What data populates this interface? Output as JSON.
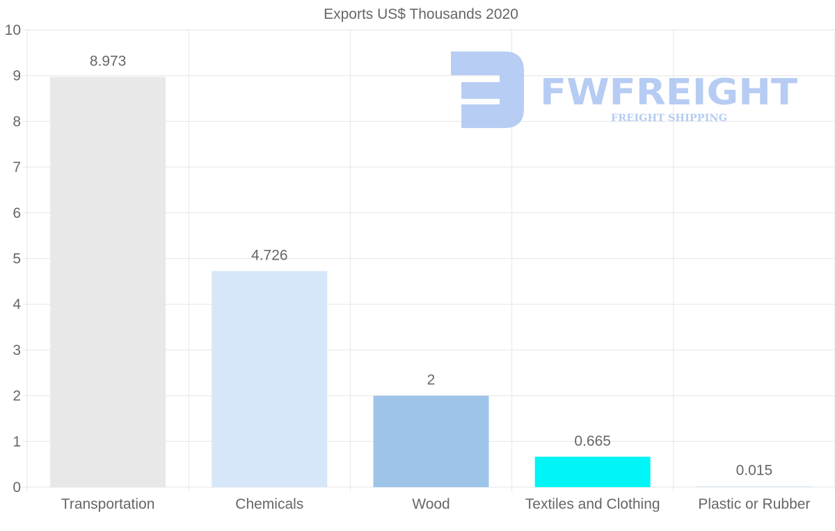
{
  "chart_data": {
    "type": "bar",
    "title": "Exports US$ Thousands 2020",
    "categories": [
      "Transportation",
      "Chemicals",
      "Wood",
      "Textiles and Clothing",
      "Plastic or Rubber"
    ],
    "values": [
      8.973,
      4.726,
      2,
      0.665,
      0.015
    ],
    "value_labels": [
      "8.973",
      "4.726",
      "2",
      "0.665",
      "0.015"
    ],
    "bar_colors": [
      "#e8e8e8",
      "#d6e7f9",
      "#9ec4e9",
      "#00f5f7",
      "#dce9f8"
    ],
    "ylim": [
      0,
      10
    ],
    "yticks": [
      "0",
      "1",
      "2",
      "3",
      "4",
      "5",
      "6",
      "7",
      "8",
      "9",
      "10"
    ],
    "xlabel": "",
    "ylabel": "",
    "grid": true,
    "legend": "none"
  },
  "watermark": {
    "brand": "FWFREIGHT",
    "tagline": "FREIGHT SHIPPING",
    "color": "#aac4f1"
  },
  "colors": {
    "grid": "#e6e6e6",
    "axis_text": "#666666"
  }
}
